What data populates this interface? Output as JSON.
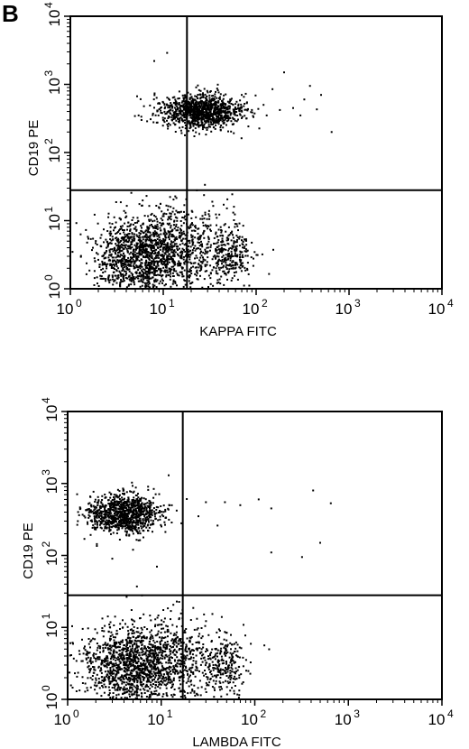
{
  "panel_label": "B",
  "chart_data": [
    {
      "type": "scatter",
      "title": "",
      "xlabel": "KAPPA FITC",
      "ylabel": "CD19 PE",
      "xscale": "log",
      "yscale": "log",
      "xlim": [
        1,
        10000
      ],
      "ylim": [
        1,
        10000
      ],
      "xticks": [
        {
          "base": "10",
          "exp": "0"
        },
        {
          "base": "10",
          "exp": "1"
        },
        {
          "base": "10",
          "exp": "2"
        },
        {
          "base": "10",
          "exp": "3"
        },
        {
          "base": "10",
          "exp": "4"
        }
      ],
      "yticks": [
        {
          "base": "10",
          "exp": "0"
        },
        {
          "base": "10",
          "exp": "1"
        },
        {
          "base": "10",
          "exp": "2"
        },
        {
          "base": "10",
          "exp": "3"
        },
        {
          "base": "10",
          "exp": "4"
        }
      ],
      "quadrant_gate": {
        "x": 18,
        "y": 28
      },
      "grid": false,
      "legend": "none",
      "clusters": [
        {
          "center": [
            25,
            400
          ],
          "spread_decades": [
            0.22,
            0.13
          ],
          "n": 1100
        },
        {
          "center": [
            6,
            3
          ],
          "spread_decades": [
            0.26,
            0.3
          ],
          "n": 1300
        },
        {
          "center": [
            20,
            4
          ],
          "spread_decades": [
            0.3,
            0.3
          ],
          "n": 500
        },
        {
          "center": [
            55,
            3
          ],
          "spread_decades": [
            0.1,
            0.2
          ],
          "n": 200
        }
      ],
      "outliers": [
        [
          200,
          1500
        ],
        [
          380,
          950
        ],
        [
          650,
          200
        ],
        [
          330,
          600
        ],
        [
          150,
          850
        ],
        [
          120,
          500
        ],
        [
          300,
          350
        ],
        [
          250,
          450
        ],
        [
          450,
          430
        ],
        [
          90,
          420
        ],
        [
          70,
          700
        ],
        [
          8,
          2200
        ],
        [
          11,
          2900
        ],
        [
          130,
          350
        ],
        [
          180,
          420
        ],
        [
          500,
          700
        ]
      ]
    },
    {
      "type": "scatter",
      "title": "",
      "xlabel": "LAMBDA FITC",
      "ylabel": "CD19 PE",
      "xscale": "log",
      "yscale": "log",
      "xlim": [
        1,
        10000
      ],
      "ylim": [
        1,
        10000
      ],
      "xticks": [
        {
          "base": "10",
          "exp": "0"
        },
        {
          "base": "10",
          "exp": "1"
        },
        {
          "base": "10",
          "exp": "2"
        },
        {
          "base": "10",
          "exp": "3"
        },
        {
          "base": "10",
          "exp": "4"
        }
      ],
      "yticks": [
        {
          "base": "10",
          "exp": "0"
        },
        {
          "base": "10",
          "exp": "1"
        },
        {
          "base": "10",
          "exp": "2"
        },
        {
          "base": "10",
          "exp": "3"
        },
        {
          "base": "10",
          "exp": "4"
        }
      ],
      "quadrant_gate": {
        "x": 17,
        "y": 28
      },
      "grid": false,
      "legend": "none",
      "clusters": [
        {
          "center": [
            4,
            380
          ],
          "spread_decades": [
            0.2,
            0.13
          ],
          "n": 1000
        },
        {
          "center": [
            5,
            3
          ],
          "spread_decades": [
            0.28,
            0.3
          ],
          "n": 1300
        },
        {
          "center": [
            15,
            3
          ],
          "spread_decades": [
            0.3,
            0.3
          ],
          "n": 450
        },
        {
          "center": [
            50,
            3
          ],
          "spread_decades": [
            0.1,
            0.2
          ],
          "n": 200
        }
      ],
      "outliers": [
        [
          30,
          550
        ],
        [
          48,
          550
        ],
        [
          70,
          500
        ],
        [
          110,
          600
        ],
        [
          150,
          450
        ],
        [
          420,
          800
        ],
        [
          650,
          530
        ],
        [
          500,
          150
        ],
        [
          320,
          95
        ],
        [
          150,
          110
        ],
        [
          25,
          350
        ],
        [
          40,
          260
        ],
        [
          12,
          1300
        ],
        [
          9,
          70
        ],
        [
          5,
          120
        ],
        [
          3,
          90
        ]
      ]
    }
  ]
}
